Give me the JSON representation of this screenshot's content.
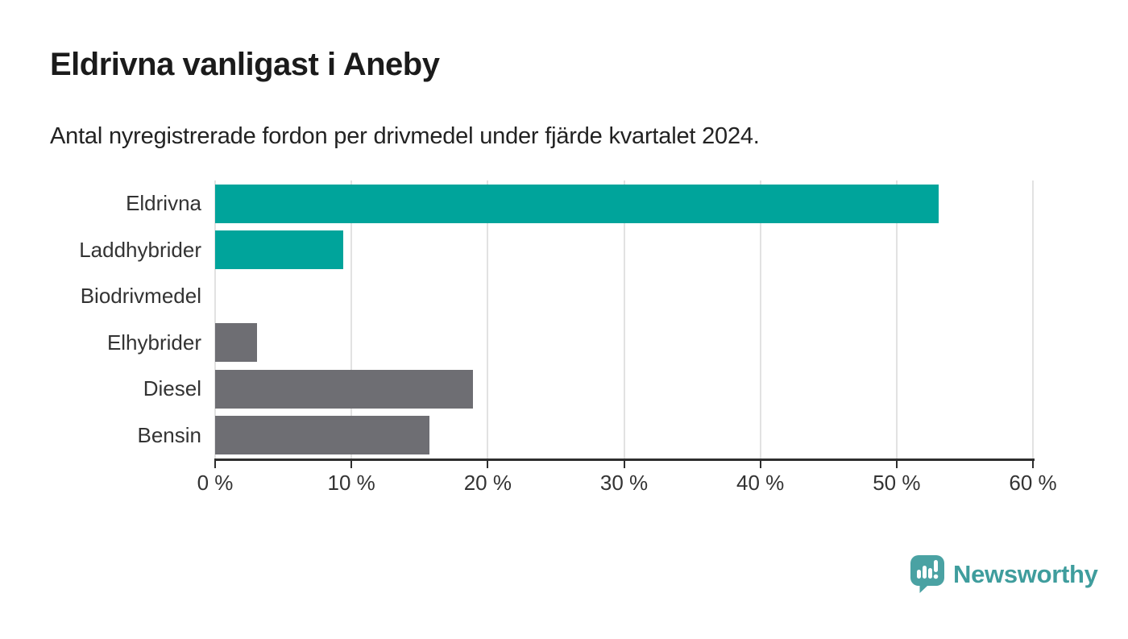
{
  "header": {
    "title": "Eldrivna vanligast i Aneby",
    "subtitle": "Antal nyregistrerade fordon per drivmedel under fjärde kvartalet 2024."
  },
  "chart_data": {
    "type": "bar",
    "orientation": "horizontal",
    "title": "Eldrivna vanligast i Aneby",
    "subtitle": "Antal nyregistrerade fordon per drivmedel under fjärde kvartalet 2024.",
    "categories": [
      "Eldrivna",
      "Laddhybrider",
      "Biodrivmedel",
      "Elhybrider",
      "Diesel",
      "Bensin"
    ],
    "values": [
      53.1,
      9.4,
      0,
      3.1,
      18.9,
      15.7
    ],
    "unit": "%",
    "bar_colors": [
      "#00a49b",
      "#00a49b",
      "#00a49b",
      "#6e6e73",
      "#6e6e73",
      "#6e6e73"
    ],
    "xlabel": "",
    "ylabel": "",
    "xlim": [
      0,
      60
    ],
    "x_ticks": [
      0,
      10,
      20,
      30,
      40,
      50,
      60
    ],
    "x_tick_labels": [
      "0 %",
      "10 %",
      "20 %",
      "30 %",
      "40 %",
      "50 %",
      "60 %"
    ],
    "grid": "vertical-only",
    "legend": "none",
    "colors": {
      "teal": "#00a49b",
      "gray": "#6e6e73",
      "gridline": "#e2e2e2",
      "axis": "#2e2e2e",
      "label_text": "#333333"
    }
  },
  "footer": {
    "brand": "Newsworthy",
    "logo_icon": "newsworthy-speech-bubble-chart-icon",
    "brand_text_color": "#3f9d9d",
    "logo_fill": "#4aa2a3"
  }
}
